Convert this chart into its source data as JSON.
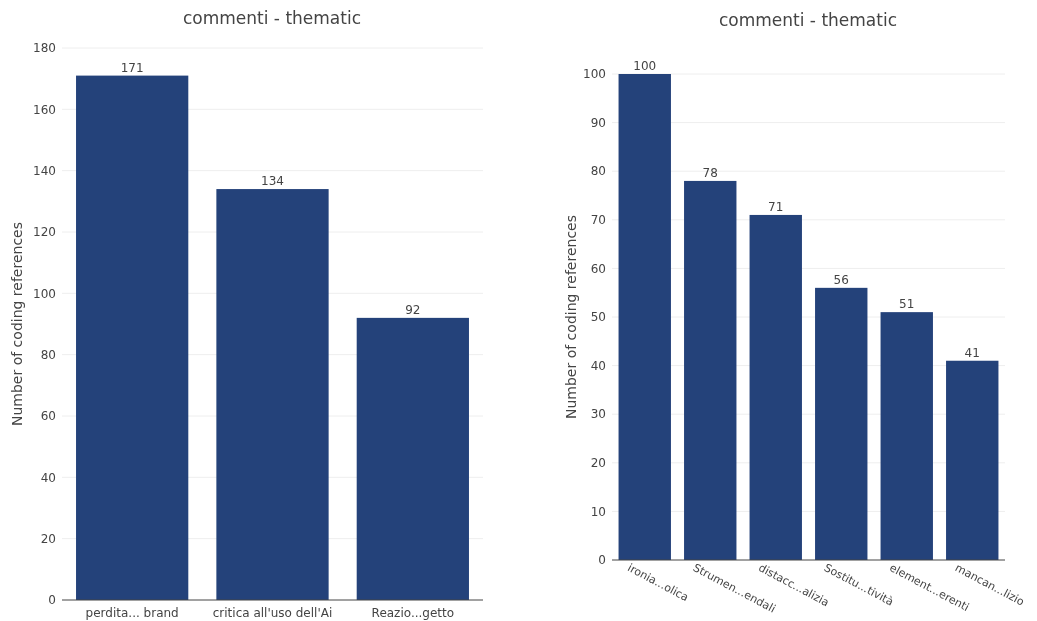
{
  "chart_data": [
    {
      "type": "bar",
      "title": "commenti - thematic",
      "ylabel": "Number of coding references",
      "categories": [
        "perdita... brand",
        "critica all'uso dell'Ai",
        "Reazio...getto"
      ],
      "values": [
        171,
        134,
        92
      ],
      "color": "#24427a",
      "ylim": [
        0,
        180
      ],
      "yticks": [
        0,
        20,
        40,
        60,
        80,
        100,
        120,
        140,
        160,
        180
      ],
      "grid": "y",
      "data_labels": true
    },
    {
      "type": "bar",
      "title": "commenti - thematic",
      "ylabel": "Number of coding references",
      "categories": [
        "ironia...olica",
        "Strumen...endali",
        "distacc...alizia",
        "Sostitu...tività",
        "element...erenti",
        "mancan...lizio"
      ],
      "values": [
        100,
        78,
        71,
        56,
        51,
        41
      ],
      "color": "#24427a",
      "ylim": [
        0,
        100
      ],
      "yticks": [
        0,
        10,
        20,
        30,
        40,
        50,
        60,
        70,
        80,
        90,
        100
      ],
      "grid": "y",
      "data_labels": true
    }
  ]
}
